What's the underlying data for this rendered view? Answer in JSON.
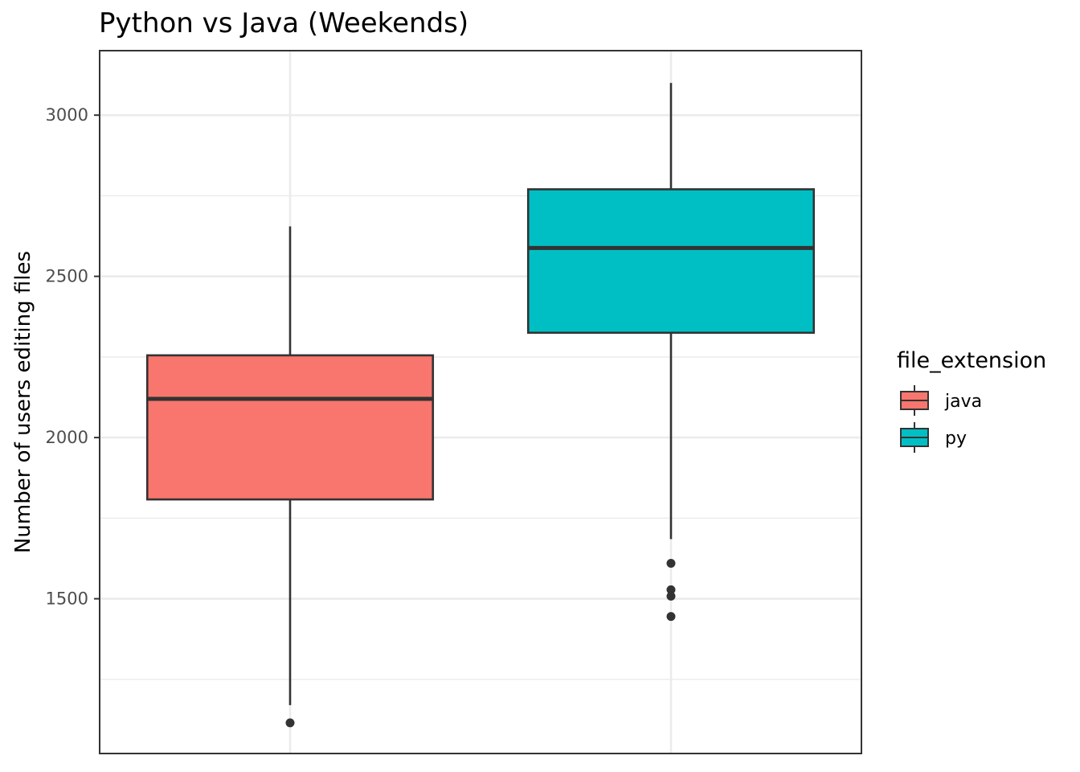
{
  "chart_data": {
    "type": "box",
    "title": "Python vs Java (Weekends)",
    "xlabel": "",
    "ylabel": "Number of users editing files",
    "ylim": [
      1020,
      3200
    ],
    "yticks": [
      1500,
      2000,
      2500,
      3000
    ],
    "ytick_labels": [
      "1500",
      "2000",
      "2500",
      "3000"
    ],
    "grid": true,
    "legend": {
      "title": "file_extension",
      "position": "right",
      "entries": [
        "java",
        "py"
      ]
    },
    "series": [
      {
        "name": "java",
        "color": "#F8766D",
        "stats": {
          "min": 1170,
          "q1": 1808,
          "median": 2120,
          "q3": 2255,
          "max": 2655
        },
        "outliers": [
          1115
        ]
      },
      {
        "name": "py",
        "color": "#00BFC4",
        "stats": {
          "min": 1685,
          "q1": 2325,
          "median": 2588,
          "q3": 2770,
          "max": 3100
        },
        "outliers": [
          1610,
          1528,
          1508,
          1445
        ]
      }
    ]
  }
}
